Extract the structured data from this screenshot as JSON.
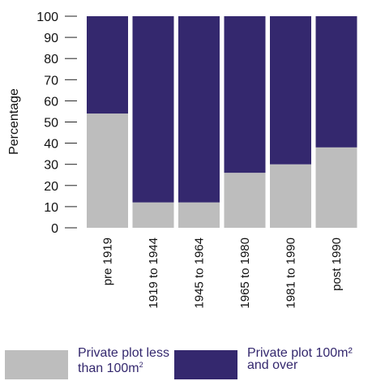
{
  "chart_data": {
    "type": "bar",
    "stacked": true,
    "categories": [
      "pre 1919",
      "1919 to 1944",
      "1945 to 1964",
      "1965 to 1980",
      "1981 to 1990",
      "post 1990"
    ],
    "series": [
      {
        "name": "Private plot less than 100m²",
        "values": [
          54,
          12,
          12,
          26,
          30,
          38
        ],
        "color": "#bdbdbd"
      },
      {
        "name": "Private plot 100m² and over",
        "values": [
          46,
          88,
          88,
          74,
          70,
          62
        ],
        "color": "#34286e"
      }
    ],
    "ylabel": "Percentage",
    "ylim": [
      0,
      100
    ],
    "yticks": [
      0,
      10,
      20,
      30,
      40,
      50,
      60,
      70,
      80,
      90,
      100
    ],
    "legend_position": "bottom"
  },
  "legend": {
    "item1": {
      "line1": "Private plot less",
      "line2": "than 100m",
      "sup": "2",
      "color": "#bdbdbd",
      "text_color": "#34286e"
    },
    "item2": {
      "line1": "Private plot 100m²",
      "line2": "and over",
      "color": "#34286e",
      "text_color": "#34286e"
    }
  }
}
